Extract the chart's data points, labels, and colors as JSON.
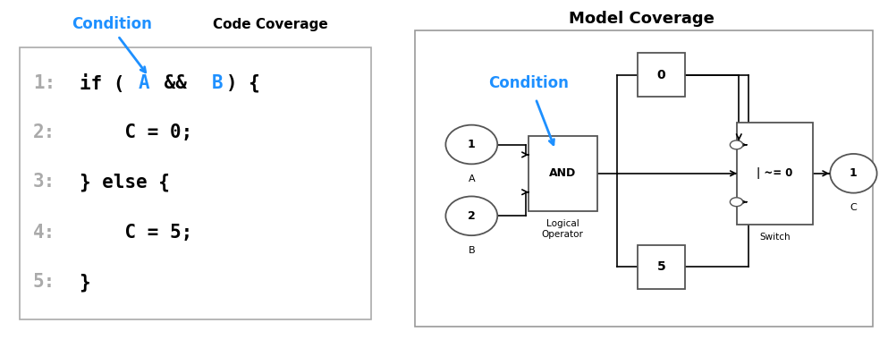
{
  "left_title": "Code Coverage",
  "left_condition_label": "Condition",
  "left_arrow_color": "#1e90ff",
  "right_title": "Model Coverage",
  "condition_label": "Condition",
  "condition_arrow_color": "#1e90ff",
  "bg_color": "#ffffff"
}
